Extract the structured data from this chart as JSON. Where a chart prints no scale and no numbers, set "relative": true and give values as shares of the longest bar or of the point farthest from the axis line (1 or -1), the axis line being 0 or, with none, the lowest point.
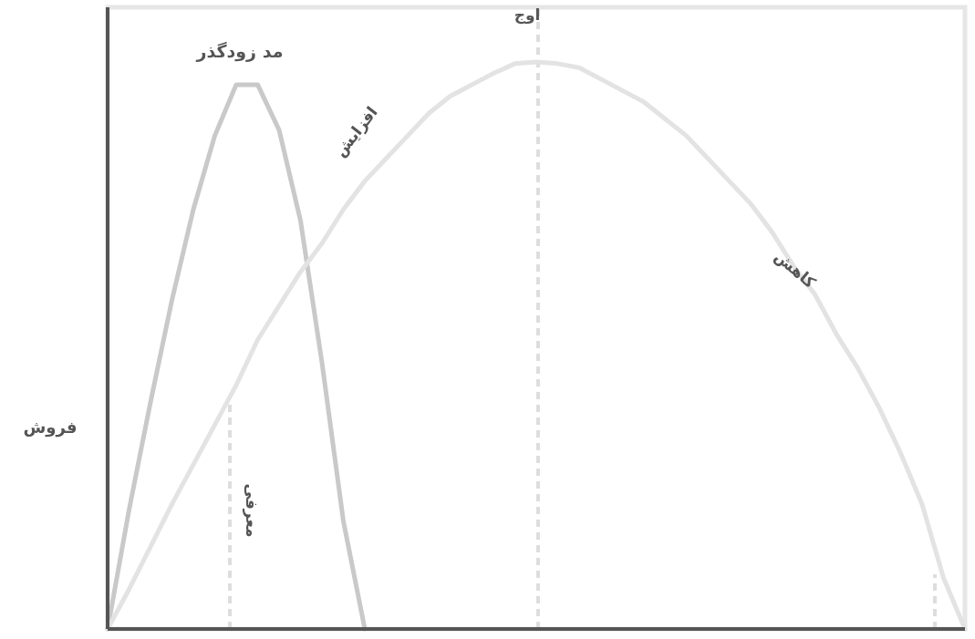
{
  "chart_data": {
    "type": "line",
    "relative": true,
    "ylabel": "فروش",
    "categories": [
      null,
      null,
      null,
      null,
      null,
      null,
      null,
      null,
      null,
      null,
      null,
      null,
      null,
      null,
      null,
      null,
      null,
      null,
      null,
      null,
      null,
      null,
      null,
      null,
      null,
      null,
      null,
      null,
      null,
      null,
      null,
      null,
      null,
      null,
      null,
      null,
      null,
      null,
      null,
      null,
      null
    ],
    "series": [
      {
        "name": "مد زودگذر",
        "color": "#c9c9c9",
        "values": [
          0,
          0.21,
          0.4,
          0.58,
          0.74,
          0.87,
          0.96,
          0.96,
          0.88,
          0.72,
          0.47,
          0.19,
          0,
          null,
          null,
          null,
          null,
          null,
          null,
          null,
          null,
          null,
          null,
          null,
          null,
          null,
          null,
          null,
          null,
          null,
          null,
          null,
          null,
          null,
          null,
          null,
          null,
          null,
          null,
          null,
          null
        ]
      },
      {
        "color": "#e3e3e3",
        "values": [
          0,
          0.07,
          0.145,
          0.22,
          0.29,
          0.36,
          0.43,
          0.51,
          0.57,
          0.63,
          0.68,
          0.74,
          0.79,
          0.83,
          0.87,
          0.91,
          0.94,
          0.96,
          0.98,
          0.997,
          1,
          0.997,
          0.99,
          0.97,
          0.95,
          0.93,
          0.9,
          0.87,
          0.83,
          0.79,
          0.75,
          0.7,
          0.64,
          0.59,
          0.52,
          0.46,
          0.39,
          0.31,
          0.22,
          0.09,
          0
        ]
      }
    ],
    "annotations": [
      "افزایش",
      "کاهش",
      "معرفی",
      "اوج"
    ]
  }
}
